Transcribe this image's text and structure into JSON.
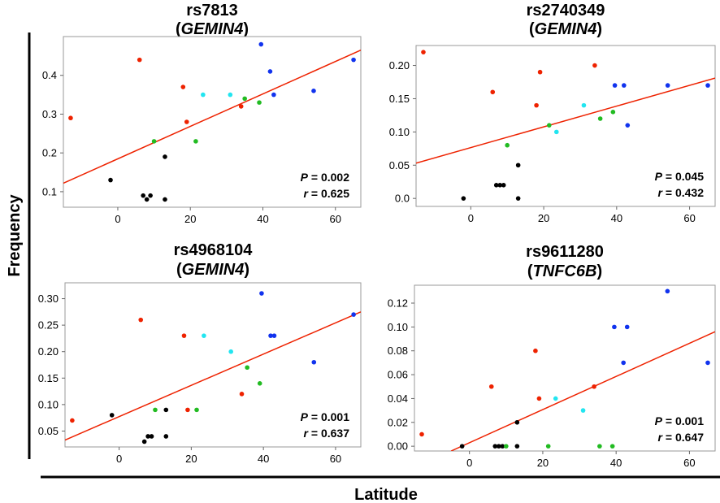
{
  "figure": {
    "ylabel": "Frequency",
    "xlabel": "Latitude"
  },
  "colors": {
    "black": "#000000",
    "red": "#ee2200",
    "green": "#22bb22",
    "cyan": "#22e5f0",
    "blue": "#1133ee",
    "fit": "#ee2200",
    "frame": "#999999"
  },
  "chart_data": [
    {
      "type": "scatter",
      "title_snp": "rs7813",
      "title_gene": "GEMIN4",
      "xlim": [
        -15,
        67
      ],
      "ylim": [
        0.06,
        0.5
      ],
      "xticks": [
        0,
        20,
        40,
        60
      ],
      "yticks": [
        0.1,
        0.2,
        0.3,
        0.4
      ],
      "ytick_labels": [
        "0.1",
        "0.2",
        "0.3",
        "0.4"
      ],
      "p_value": "0.002",
      "r_value": "0.625",
      "fit_line": [
        [
          -15,
          0.122
        ],
        [
          67,
          0.465
        ]
      ],
      "points": [
        {
          "x": -13,
          "y": 0.29,
          "c": "red"
        },
        {
          "x": -2,
          "y": 0.13,
          "c": "black"
        },
        {
          "x": 6,
          "y": 0.44,
          "c": "red"
        },
        {
          "x": 7,
          "y": 0.09,
          "c": "black"
        },
        {
          "x": 8,
          "y": 0.08,
          "c": "black"
        },
        {
          "x": 9,
          "y": 0.09,
          "c": "black"
        },
        {
          "x": 10,
          "y": 0.23,
          "c": "green"
        },
        {
          "x": 13,
          "y": 0.19,
          "c": "black"
        },
        {
          "x": 13,
          "y": 0.08,
          "c": "black"
        },
        {
          "x": 18,
          "y": 0.37,
          "c": "red"
        },
        {
          "x": 19,
          "y": 0.28,
          "c": "red"
        },
        {
          "x": 21.5,
          "y": 0.23,
          "c": "green"
        },
        {
          "x": 23.5,
          "y": 0.35,
          "c": "cyan"
        },
        {
          "x": 31,
          "y": 0.35,
          "c": "cyan"
        },
        {
          "x": 34,
          "y": 0.32,
          "c": "red"
        },
        {
          "x": 35,
          "y": 0.34,
          "c": "green"
        },
        {
          "x": 39,
          "y": 0.33,
          "c": "green"
        },
        {
          "x": 39.5,
          "y": 0.48,
          "c": "blue"
        },
        {
          "x": 42,
          "y": 0.41,
          "c": "blue"
        },
        {
          "x": 43,
          "y": 0.35,
          "c": "blue"
        },
        {
          "x": 54,
          "y": 0.36,
          "c": "blue"
        },
        {
          "x": 65,
          "y": 0.44,
          "c": "blue"
        }
      ]
    },
    {
      "type": "scatter",
      "title_snp": "rs2740349",
      "title_gene": "GEMIN4",
      "xlim": [
        -15,
        67
      ],
      "ylim": [
        -0.012,
        0.23
      ],
      "xticks": [
        0,
        20,
        40,
        60
      ],
      "yticks": [
        0.0,
        0.05,
        0.1,
        0.15,
        0.2
      ],
      "ytick_labels": [
        "0.0",
        "0.05",
        "0.10",
        "0.15",
        "0.20"
      ],
      "p_value": "0.045",
      "r_value": "0.432",
      "fit_line": [
        [
          -15,
          0.053
        ],
        [
          67,
          0.181
        ]
      ],
      "points": [
        {
          "x": -13,
          "y": 0.22,
          "c": "red"
        },
        {
          "x": -2,
          "y": 0.0,
          "c": "black"
        },
        {
          "x": 6,
          "y": 0.16,
          "c": "red"
        },
        {
          "x": 7,
          "y": 0.02,
          "c": "black"
        },
        {
          "x": 8,
          "y": 0.02,
          "c": "black"
        },
        {
          "x": 9,
          "y": 0.02,
          "c": "black"
        },
        {
          "x": 10,
          "y": 0.08,
          "c": "green"
        },
        {
          "x": 13,
          "y": 0.05,
          "c": "black"
        },
        {
          "x": 13,
          "y": 0.0,
          "c": "black"
        },
        {
          "x": 18,
          "y": 0.14,
          "c": "red"
        },
        {
          "x": 19,
          "y": 0.19,
          "c": "red"
        },
        {
          "x": 21.5,
          "y": 0.11,
          "c": "green"
        },
        {
          "x": 23.5,
          "y": 0.1,
          "c": "cyan"
        },
        {
          "x": 31,
          "y": 0.14,
          "c": "cyan"
        },
        {
          "x": 34,
          "y": 0.2,
          "c": "red"
        },
        {
          "x": 35.5,
          "y": 0.12,
          "c": "green"
        },
        {
          "x": 39,
          "y": 0.13,
          "c": "green"
        },
        {
          "x": 39.5,
          "y": 0.17,
          "c": "blue"
        },
        {
          "x": 42,
          "y": 0.17,
          "c": "blue"
        },
        {
          "x": 43,
          "y": 0.11,
          "c": "blue"
        },
        {
          "x": 54,
          "y": 0.17,
          "c": "blue"
        },
        {
          "x": 65,
          "y": 0.17,
          "c": "blue"
        }
      ]
    },
    {
      "type": "scatter",
      "title_snp": "rs4968104",
      "title_gene": "GEMIN4",
      "xlim": [
        -15,
        67
      ],
      "ylim": [
        0.02,
        0.33
      ],
      "xticks": [
        0,
        20,
        40,
        60
      ],
      "yticks": [
        0.05,
        0.1,
        0.15,
        0.2,
        0.25,
        0.3
      ],
      "ytick_labels": [
        "0.05",
        "0.10",
        "0.15",
        "0.20",
        "0.25",
        "0.30"
      ],
      "p_value": "0.001",
      "r_value": "0.637",
      "fit_line": [
        [
          -15,
          0.033
        ],
        [
          67,
          0.275
        ]
      ],
      "points": [
        {
          "x": -13,
          "y": 0.07,
          "c": "red"
        },
        {
          "x": -2,
          "y": 0.08,
          "c": "black"
        },
        {
          "x": 6,
          "y": 0.26,
          "c": "red"
        },
        {
          "x": 7,
          "y": 0.03,
          "c": "black"
        },
        {
          "x": 8,
          "y": 0.04,
          "c": "black"
        },
        {
          "x": 9,
          "y": 0.04,
          "c": "black"
        },
        {
          "x": 10,
          "y": 0.09,
          "c": "green"
        },
        {
          "x": 13,
          "y": 0.09,
          "c": "black"
        },
        {
          "x": 13,
          "y": 0.04,
          "c": "black"
        },
        {
          "x": 18,
          "y": 0.23,
          "c": "red"
        },
        {
          "x": 19,
          "y": 0.09,
          "c": "red"
        },
        {
          "x": 21.5,
          "y": 0.09,
          "c": "green"
        },
        {
          "x": 23.5,
          "y": 0.23,
          "c": "cyan"
        },
        {
          "x": 31,
          "y": 0.2,
          "c": "cyan"
        },
        {
          "x": 34,
          "y": 0.12,
          "c": "red"
        },
        {
          "x": 35.5,
          "y": 0.17,
          "c": "green"
        },
        {
          "x": 39,
          "y": 0.14,
          "c": "green"
        },
        {
          "x": 39.5,
          "y": 0.31,
          "c": "blue"
        },
        {
          "x": 42,
          "y": 0.23,
          "c": "blue"
        },
        {
          "x": 43,
          "y": 0.23,
          "c": "blue"
        },
        {
          "x": 54,
          "y": 0.18,
          "c": "blue"
        },
        {
          "x": 65,
          "y": 0.27,
          "c": "blue"
        }
      ]
    },
    {
      "type": "scatter",
      "title_snp": "rs9611280",
      "title_gene": "TNFC6B",
      "xlim": [
        -15,
        67
      ],
      "ylim": [
        -0.004,
        0.135
      ],
      "xticks": [
        0,
        20,
        40,
        60
      ],
      "yticks": [
        0.0,
        0.02,
        0.04,
        0.06,
        0.08,
        0.1,
        0.12
      ],
      "ytick_labels": [
        "0.00",
        "0.02",
        "0.04",
        "0.06",
        "0.08",
        "0.10",
        "0.12"
      ],
      "p_value": "0.001",
      "r_value": "0.647",
      "fit_line": [
        [
          -5,
          -0.004
        ],
        [
          67,
          0.096
        ]
      ],
      "points": [
        {
          "x": -13,
          "y": 0.01,
          "c": "red"
        },
        {
          "x": -2,
          "y": 0.0,
          "c": "black"
        },
        {
          "x": 6,
          "y": 0.05,
          "c": "red"
        },
        {
          "x": 7,
          "y": 0.0,
          "c": "black"
        },
        {
          "x": 8,
          "y": 0.0,
          "c": "black"
        },
        {
          "x": 9,
          "y": 0.0,
          "c": "black"
        },
        {
          "x": 10,
          "y": 0.0,
          "c": "green"
        },
        {
          "x": 13,
          "y": 0.02,
          "c": "black"
        },
        {
          "x": 13,
          "y": 0.0,
          "c": "black"
        },
        {
          "x": 18,
          "y": 0.08,
          "c": "red"
        },
        {
          "x": 19,
          "y": 0.04,
          "c": "red"
        },
        {
          "x": 21.5,
          "y": 0.0,
          "c": "green"
        },
        {
          "x": 23.5,
          "y": 0.04,
          "c": "cyan"
        },
        {
          "x": 31,
          "y": 0.03,
          "c": "cyan"
        },
        {
          "x": 34,
          "y": 0.05,
          "c": "red"
        },
        {
          "x": 35.5,
          "y": 0.0,
          "c": "green"
        },
        {
          "x": 39,
          "y": 0.0,
          "c": "green"
        },
        {
          "x": 39.5,
          "y": 0.1,
          "c": "blue"
        },
        {
          "x": 42,
          "y": 0.07,
          "c": "blue"
        },
        {
          "x": 43,
          "y": 0.1,
          "c": "blue"
        },
        {
          "x": 54,
          "y": 0.13,
          "c": "blue"
        },
        {
          "x": 65,
          "y": 0.07,
          "c": "blue"
        }
      ]
    }
  ]
}
